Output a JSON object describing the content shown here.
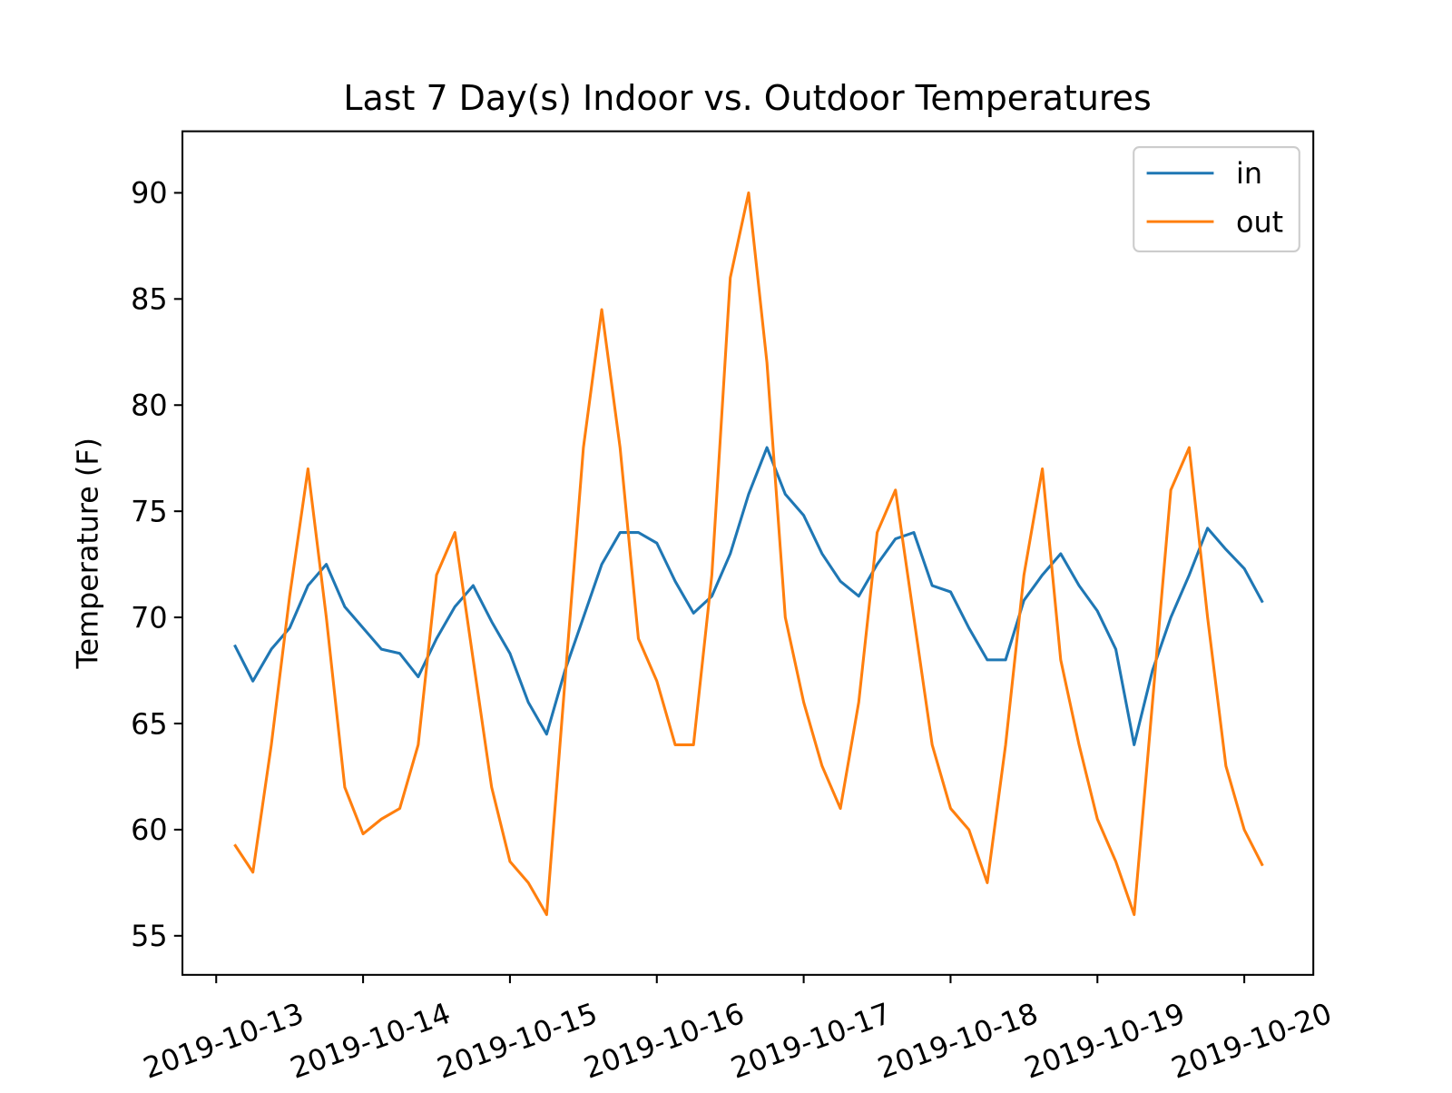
{
  "chart_data": {
    "type": "line",
    "title": "Last 7 Day(s) Indoor vs. Outdoor Temperatures",
    "y_label": "Temperature (F)",
    "x": [
      13.125,
      13.25,
      13.375,
      13.5,
      13.625,
      13.75,
      13.875,
      14.0,
      14.125,
      14.25,
      14.375,
      14.5,
      14.625,
      14.75,
      14.875,
      15.0,
      15.125,
      15.25,
      15.375,
      15.5,
      15.625,
      15.75,
      15.875,
      16.0,
      16.125,
      16.25,
      16.375,
      16.5,
      16.625,
      16.75,
      16.875,
      17.0,
      17.125,
      17.25,
      17.375,
      17.5,
      17.625,
      17.75,
      17.875,
      18.0,
      18.125,
      18.25,
      18.375,
      18.5,
      18.625,
      18.75,
      18.875,
      19.0,
      19.125,
      19.25,
      19.375,
      19.5,
      19.625,
      19.75,
      19.875,
      20.0,
      20.125
    ],
    "series": [
      {
        "name": "in",
        "color": "#1f77b4",
        "values": [
          68.7,
          67,
          68.5,
          69.5,
          71.5,
          72.5,
          70.5,
          69.5,
          68.5,
          68.3,
          67.2,
          69,
          70.5,
          71.5,
          69.8,
          68.3,
          66,
          64.5,
          67.5,
          70,
          72.5,
          74,
          74,
          73.5,
          71.7,
          70.2,
          71,
          73,
          75.8,
          78,
          75.8,
          74.8,
          73,
          71.7,
          71,
          72.5,
          73.7,
          74,
          71.5,
          71.2,
          69.5,
          68,
          68,
          70.8,
          72,
          73,
          71.5,
          70.3,
          68.5,
          64,
          67.5,
          70,
          72,
          74.2,
          73.2,
          72.3,
          70.7
        ]
      },
      {
        "name": "out",
        "color": "#ff7f0e",
        "values": [
          59.3,
          58,
          64,
          71,
          77,
          70,
          62,
          59.8,
          60.5,
          61,
          64,
          72,
          74,
          68,
          62,
          58.5,
          57.5,
          56,
          67,
          78,
          84.5,
          78,
          69,
          67,
          64,
          64,
          72,
          86,
          90,
          82,
          70,
          66,
          63,
          61,
          66,
          74,
          76,
          70,
          64,
          61,
          60,
          57.5,
          64,
          72,
          77,
          68,
          64,
          60.5,
          58.5,
          56,
          66,
          76,
          78,
          70,
          63,
          60,
          58.3
        ]
      }
    ],
    "xlim": [
      12.77,
      20.47
    ],
    "xticks": [
      {
        "value": 13,
        "label": "2019-10-13"
      },
      {
        "value": 14,
        "label": "2019-10-14"
      },
      {
        "value": 15,
        "label": "2019-10-15"
      },
      {
        "value": 16,
        "label": "2019-10-16"
      },
      {
        "value": 17,
        "label": "2019-10-17"
      },
      {
        "value": 18,
        "label": "2019-10-18"
      },
      {
        "value": 19,
        "label": "2019-10-19"
      },
      {
        "value": 20,
        "label": "2019-10-20"
      }
    ],
    "ylim": [
      53.16,
      92.9
    ],
    "yticks": [
      55,
      60,
      65,
      70,
      75,
      80,
      85,
      90
    ],
    "legend": "upper right"
  }
}
